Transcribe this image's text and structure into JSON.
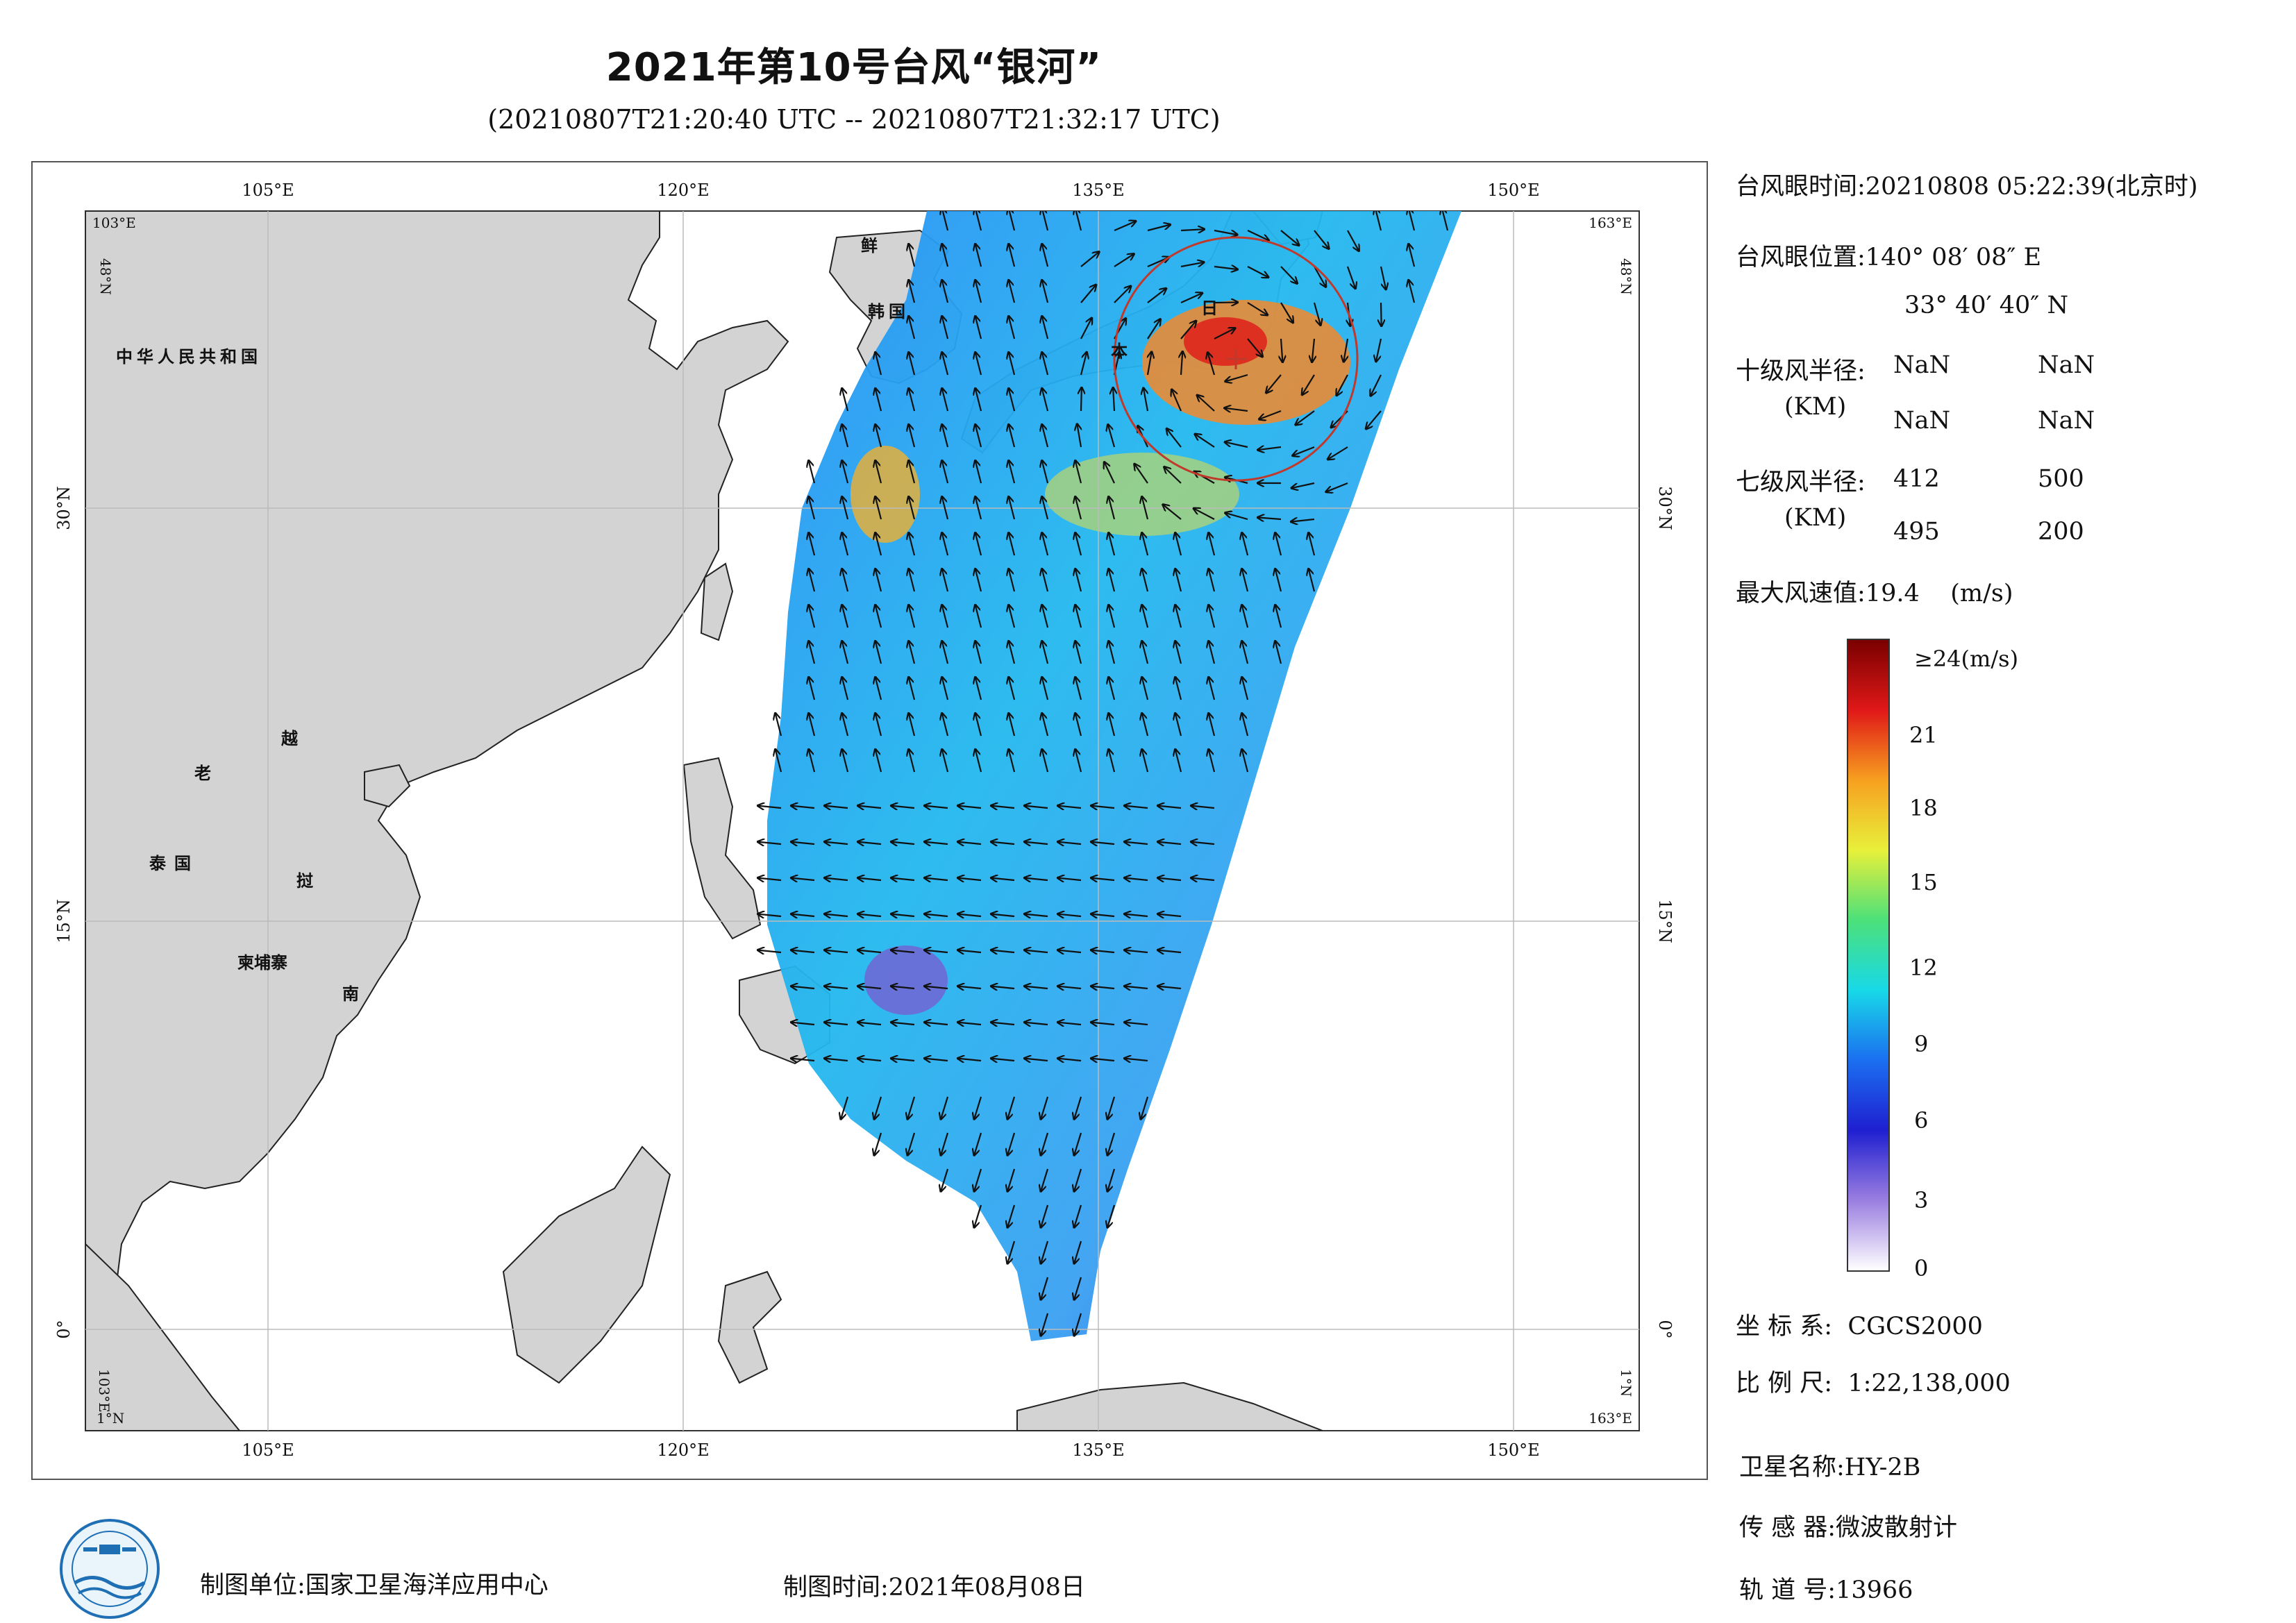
{
  "title": "2021年第10号台风“银河”",
  "subtitle": "(20210807T21:20:40 UTC -- 20210807T21:32:17 UTC)",
  "map": {
    "top_ticks": [
      "105°E",
      "120°E",
      "135°E",
      "150°E"
    ],
    "bottom_ticks": [
      "105°E",
      "120°E",
      "135°E",
      "150°E"
    ],
    "left_ticks": [
      "30°N",
      "15°N",
      "0°"
    ],
    "right_ticks": [
      "30°N",
      "15°N",
      "0°"
    ],
    "corner_tl_lon": "103°E",
    "corner_tl_lat": "48°N",
    "corner_tr_lon": "163°E",
    "corner_tr_lat": "48°N",
    "corner_bl_lon": "103°E",
    "corner_bl_lat": "1°N",
    "corner_br_lon": "163°E",
    "corner_br_lat": "1°N",
    "place_labels": {
      "china": "中华人民共和国",
      "korea_1": "鲜",
      "korea_2": "韩国",
      "japan_1": "日",
      "japan_2": "本",
      "laos": "老",
      "vietnam_1": "越",
      "vietnam_2": "挝",
      "vietnam_3": "南",
      "thailand": "泰国",
      "cambodia": "柬埔寨"
    },
    "colors": {
      "land": "#d3d3d3",
      "ocean": "#ffffff",
      "typhoon_circle": "#c0392b"
    }
  },
  "info": {
    "eye_time_label": "台风眼时间:",
    "eye_time_value": "20210808 05:22:39(北京时)",
    "eye_pos_label": "台风眼位置:",
    "eye_lon": "140° 08′ 08″ E",
    "eye_lat": "33° 40′ 40″ N",
    "r10_label": "十级风半径:",
    "r10_unit": "(KM)",
    "r10_values": [
      "NaN",
      "NaN",
      "NaN",
      "NaN"
    ],
    "r7_label": "七级风半径:",
    "r7_unit": "(KM)",
    "r7_values": [
      "412",
      "500",
      "495",
      "200"
    ],
    "max_wind_label": "最大风速值:",
    "max_wind_value": "19.4",
    "max_wind_unit": "(m/s)"
  },
  "colorbar": {
    "top_label": "≥24(m/s)",
    "tick_labels": [
      "21",
      "18",
      "15",
      "12",
      "9",
      "6",
      "3",
      "0"
    ],
    "range": [
      0,
      24
    ],
    "stops": [
      "#ffffff",
      "#9a7ee0",
      "#1f1fd0",
      "#1b6ff0",
      "#18d9e8",
      "#4ce07a",
      "#e8f03a",
      "#f7a020",
      "#e01818",
      "#7a0000"
    ]
  },
  "meta": {
    "crs_label": "坐 标 系:",
    "crs_value": "CGCS2000",
    "scale_label": "比 例 尺:",
    "scale_value": "1:22,138,000",
    "sat_label": "卫星名称:",
    "sat_value": "HY-2B",
    "sensor_label": "传 感 器:",
    "sensor_value": "微波散射计",
    "orbit_label": "轨 道 号:",
    "orbit_value": "13966"
  },
  "footer": {
    "unit_label": "制图单位:",
    "unit_value": "国家卫星海洋应用中心",
    "time_label": "制图时间:",
    "time_value": "2021年08月08日"
  }
}
